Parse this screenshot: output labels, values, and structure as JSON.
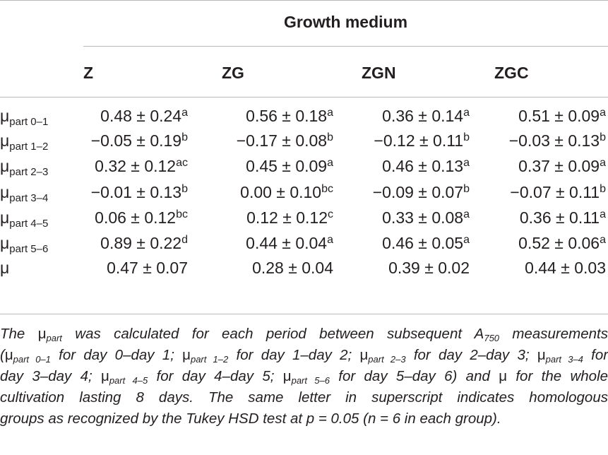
{
  "table": {
    "group_header": "Growth medium",
    "columns": [
      "Z",
      "ZG",
      "ZGN",
      "ZGC"
    ],
    "rows": [
      {
        "label_main": "μ",
        "label_sub": "part 0–1",
        "cells": [
          {
            "v": "0.48 ± 0.24",
            "s": "a"
          },
          {
            "v": "0.56 ± 0.18",
            "s": "a"
          },
          {
            "v": "0.36 ± 0.14",
            "s": "a"
          },
          {
            "v": "0.51 ± 0.09",
            "s": "a"
          }
        ]
      },
      {
        "label_main": "μ",
        "label_sub": "part 1–2",
        "cells": [
          {
            "v": "−0.05 ± 0.19",
            "s": "b"
          },
          {
            "v": "−0.17 ± 0.08",
            "s": "b"
          },
          {
            "v": "−0.12 ± 0.11",
            "s": "b"
          },
          {
            "v": "−0.03 ± 0.13",
            "s": "b"
          }
        ]
      },
      {
        "label_main": "μ",
        "label_sub": "part 2–3",
        "cells": [
          {
            "v": "0.32 ± 0.12",
            "s": "ac"
          },
          {
            "v": "0.45 ± 0.09",
            "s": "a"
          },
          {
            "v": "0.46 ± 0.13",
            "s": "a"
          },
          {
            "v": "0.37 ± 0.09",
            "s": "a"
          }
        ]
      },
      {
        "label_main": "μ",
        "label_sub": "part 3–4",
        "cells": [
          {
            "v": "−0.01 ± 0.13",
            "s": "b"
          },
          {
            "v": "0.00 ± 0.10",
            "s": "bc"
          },
          {
            "v": "−0.09 ± 0.07",
            "s": "b"
          },
          {
            "v": "−0.07 ± 0.11",
            "s": "b"
          }
        ]
      },
      {
        "label_main": "μ",
        "label_sub": "part 4–5",
        "cells": [
          {
            "v": "0.06 ± 0.12",
            "s": "bc"
          },
          {
            "v": "0.12 ± 0.12",
            "s": "c"
          },
          {
            "v": "0.33 ± 0.08",
            "s": "a"
          },
          {
            "v": "0.36 ± 0.11",
            "s": "a"
          }
        ]
      },
      {
        "label_main": "μ",
        "label_sub": "part 5–6",
        "cells": [
          {
            "v": "0.89 ± 0.22",
            "s": "d"
          },
          {
            "v": "0.44 ± 0.04",
            "s": "a"
          },
          {
            "v": "0.46 ± 0.05",
            "s": "a"
          },
          {
            "v": "0.52 ± 0.06",
            "s": "a"
          }
        ]
      },
      {
        "label_main": "μ",
        "label_sub": "",
        "cells": [
          {
            "v": "0.47 ± 0.07",
            "s": ""
          },
          {
            "v": "0.28 ± 0.04",
            "s": ""
          },
          {
            "v": "0.39 ± 0.02",
            "s": ""
          },
          {
            "v": "0.44 ± 0.03",
            "s": ""
          }
        ]
      }
    ]
  },
  "footnote": {
    "l1_a": "The ",
    "l1_mu": "μ",
    "l1_sub": "part",
    "l1_b": " was calculated for each period between subsequent ",
    "l1_A": "A",
    "l1_Asub": "750",
    "l1_c": " measurements",
    "l2_open": "(",
    "l2_mu1": "μ",
    "l2_sub1": "part 0–1",
    "l2_t1": " for day 0–day 1; ",
    "l2_mu2": "μ",
    "l2_sub2": "part 1–2",
    "l2_t2": " for day 1–day 2; ",
    "l2_mu3": "μ",
    "l2_sub3": "part 2–3",
    "l2_t3": " for day 2–day 3; ",
    "l2_mu4": "μ",
    "l2_sub4": "part 3–4",
    "l2_t4": " for",
    "l3_t0": "day 3–day 4; ",
    "l3_mu5": "μ",
    "l3_sub5": "part 4–5",
    "l3_t5": " for day 4–day 5; ",
    "l3_mu6": "μ",
    "l3_sub6": "part 5–6",
    "l3_t6": " for day 5–day 6) and ",
    "l3_mu7": "μ",
    "l3_t7": " for the whole",
    "l4": "cultivation lasting 8 days. The same letter in superscript indicates homologous",
    "l5": "groups as recognized by the Tukey HSD test at p = 0.05 (n = 6 in each group)."
  }
}
